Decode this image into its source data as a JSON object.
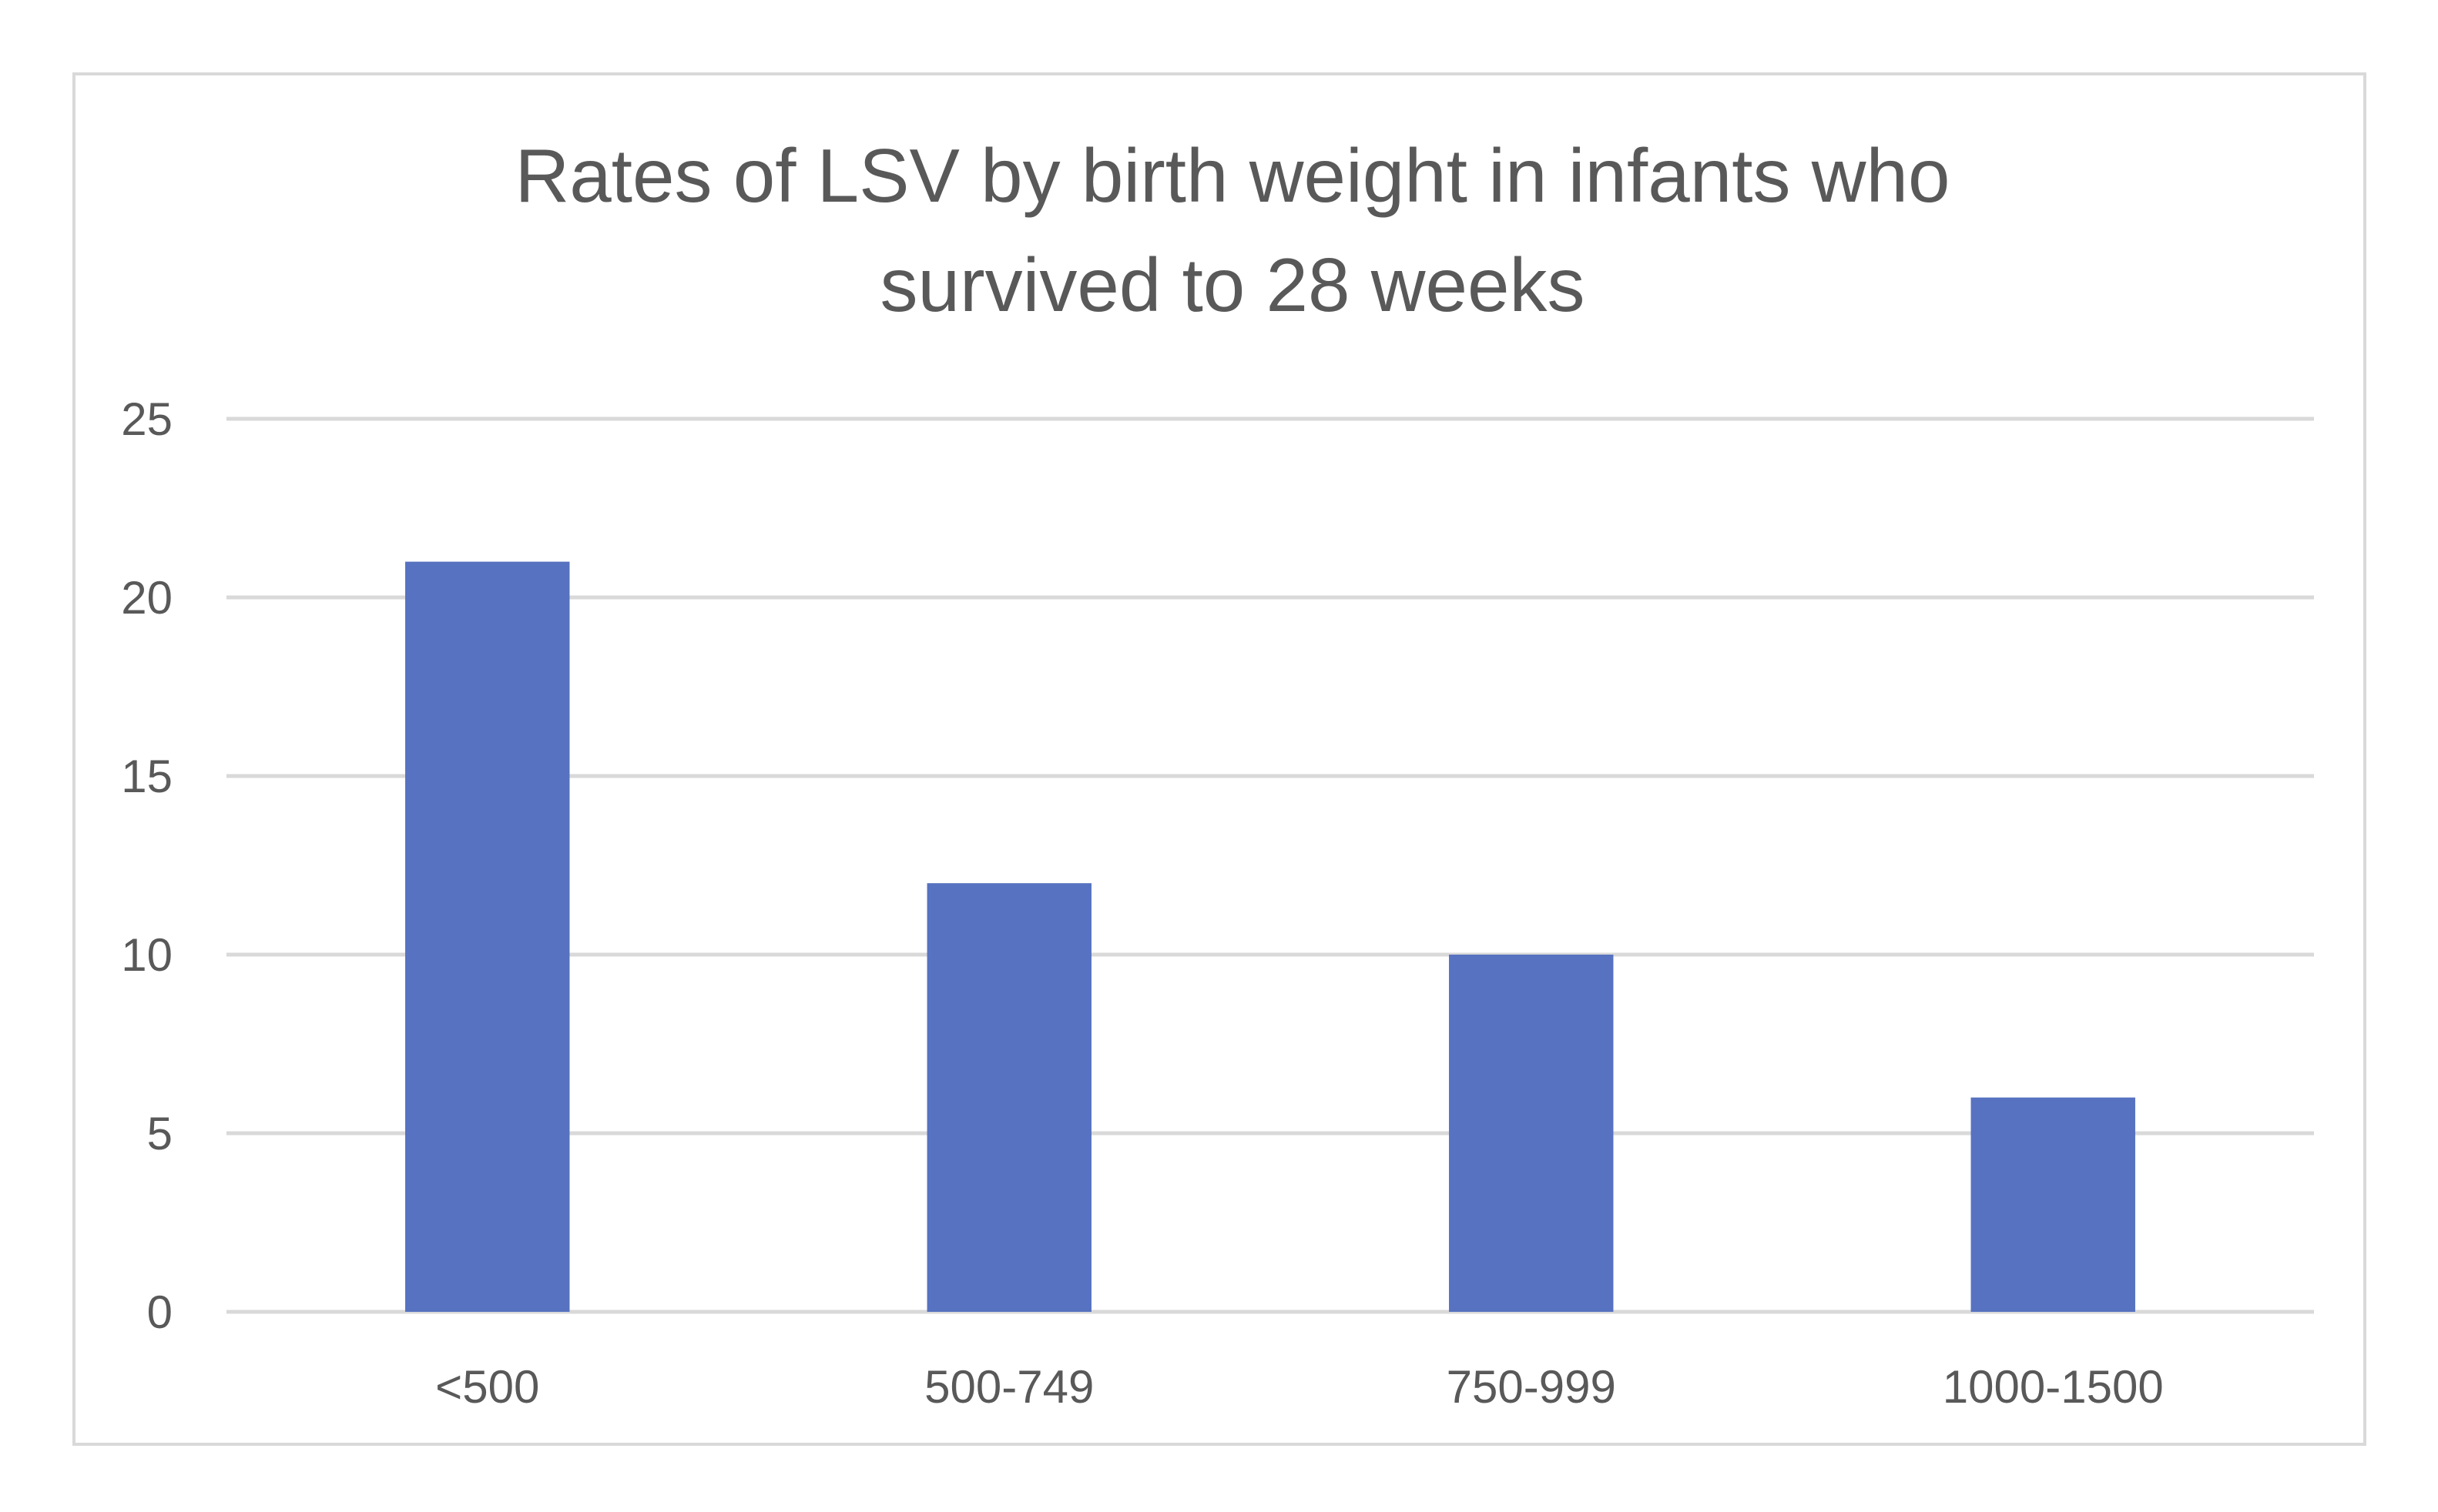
{
  "chart_data": {
    "type": "bar",
    "title_lines": [
      "Rates of LSV by birth weight in  infants who",
      "survived to 28 weeks"
    ],
    "categories": [
      "<500",
      "500-749",
      "750-999",
      "1000-1500"
    ],
    "values": [
      21,
      12,
      10,
      6
    ],
    "xlabel": "",
    "ylabel": "",
    "ylim": [
      0,
      25
    ],
    "yticks": [
      "0",
      "5",
      "10",
      "15",
      "20",
      "25"
    ],
    "grid": true,
    "legend": "none",
    "colors": {
      "bar": "#5672C0",
      "grid": "#d9d9d9",
      "text": "#595959"
    }
  }
}
